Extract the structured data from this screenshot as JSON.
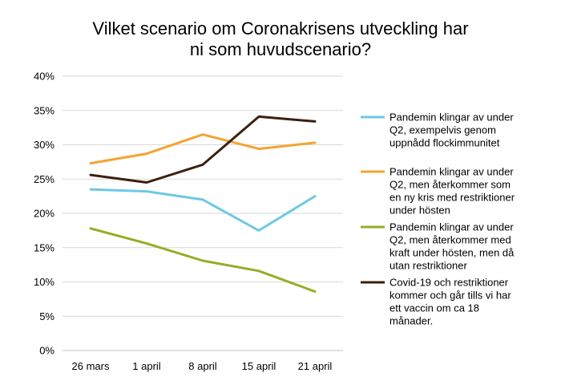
{
  "chart_data": {
    "type": "line",
    "title_lines": [
      "Vilket scenario om Coronakrisens utveckling har",
      "ni som huvudscenario?"
    ],
    "categories": [
      "26 mars",
      "1 april",
      "8 april",
      "15 april",
      "21 april"
    ],
    "y_ticks": [
      "0%",
      "5%",
      "10%",
      "15%",
      "20%",
      "25%",
      "30%",
      "35%",
      "40%"
    ],
    "ylim": [
      0,
      40
    ],
    "y_unit": "%",
    "grid": true,
    "legend_position": "right",
    "series": [
      {
        "name": "Pandemin klingar av under Q2, exempelvis genom uppnådd flockimmunitet",
        "legend_lines": [
          "Pandemin klingar av under",
          "Q2, exempelvis genom",
          "uppnådd flockimmunitet"
        ],
        "color": "#6ec8e4",
        "values": [
          23.5,
          23.2,
          22.0,
          17.5,
          22.5
        ]
      },
      {
        "name": "Pandemin klingar av under Q2, men återkommer som en ny kris med restriktioner under hösten",
        "legend_lines": [
          "Pandemin klingar av under",
          "Q2, men återkommer som",
          "en ny kris med restriktioner",
          "under hösten"
        ],
        "color": "#f4a431",
        "values": [
          27.3,
          28.7,
          31.5,
          29.4,
          30.3
        ]
      },
      {
        "name": "Pandemin klingar av under Q2, men återkommer med kraft under hösten, men då utan restriktioner",
        "legend_lines": [
          "Pandemin klingar av under",
          "Q2, men återkommer med",
          "kraft under hösten, men då",
          "utan restriktioner"
        ],
        "color": "#9aab26",
        "values": [
          17.8,
          15.6,
          13.1,
          11.6,
          8.6
        ]
      },
      {
        "name": "Covid-19 och restriktioner kommer och går tills vi har ett vaccin om ca 18 månader.",
        "legend_lines": [
          "Covid-19 och restriktioner",
          "kommer och går tills vi har",
          "ett vaccin om ca 18",
          "månader."
        ],
        "color": "#3b1f0f",
        "values": [
          25.6,
          24.5,
          27.1,
          34.1,
          33.4
        ]
      }
    ]
  }
}
